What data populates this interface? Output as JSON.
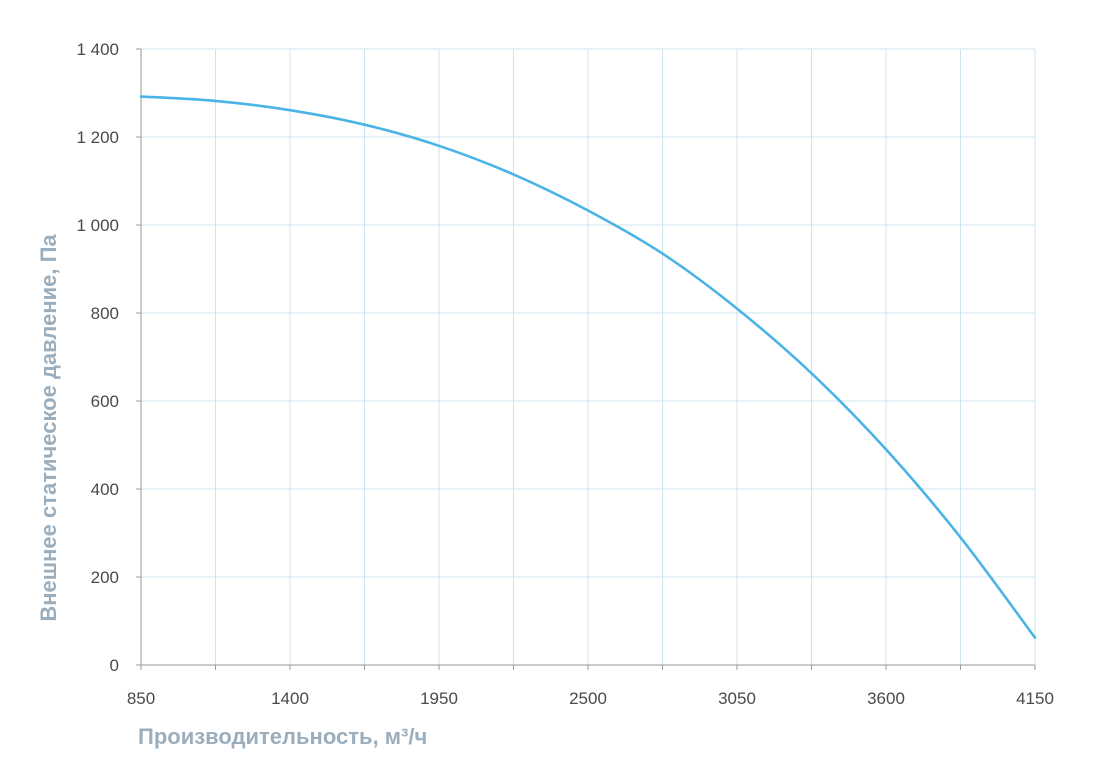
{
  "chart_data": {
    "type": "line",
    "xlabel": "Производительность, м³/ч",
    "ylabel": "Внешнее  статическое  давление, Па",
    "xlim": [
      850,
      4150
    ],
    "ylim": [
      0,
      1400
    ],
    "x_ticks": [
      850,
      1400,
      1950,
      2500,
      3050,
      3600,
      4150
    ],
    "x_tick_labels": [
      "850",
      "1400",
      "1950",
      "2500",
      "3050",
      "3600",
      "4150"
    ],
    "y_ticks": [
      0,
      200,
      400,
      600,
      800,
      1000,
      1200,
      1400
    ],
    "y_tick_labels": [
      "0",
      "200",
      "400",
      "600",
      "800",
      "1 000",
      "1 200",
      "1 400"
    ],
    "x_grid_minor": [
      1125,
      1675,
      2225,
      2775,
      3325,
      3875
    ],
    "grid": true,
    "legend": "none",
    "series": [
      {
        "color": "#4bb4e6",
        "x": [
          850,
          1125,
          1400,
          1675,
          1950,
          2225,
          2500,
          2775,
          3050,
          3325,
          3600,
          3875,
          4150
        ],
        "y": [
          1292,
          1282,
          1261,
          1228,
          1180,
          1115,
          1033,
          935,
          810,
          663,
          490,
          290,
          62
        ]
      }
    ]
  },
  "colors": {
    "grid": "#cfe3ee",
    "axis": "#9a9a9a",
    "line": "#4bb4e6",
    "tick_text": "#4a4a4a",
    "axis_title": "#9aaebe"
  }
}
